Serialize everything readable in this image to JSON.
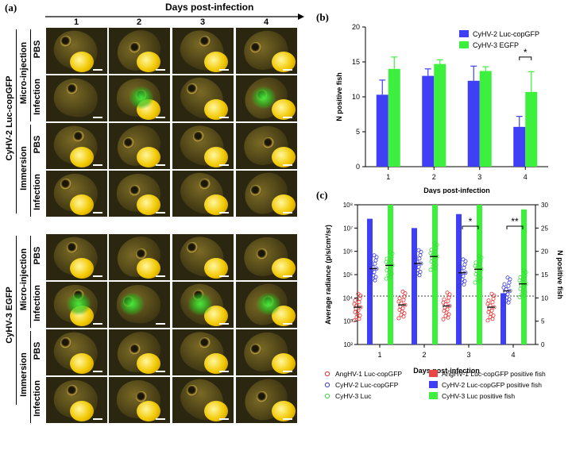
{
  "panel_a": {
    "letter": "(a)",
    "axis_title": "Days post-infection",
    "days": [
      "1",
      "2",
      "3",
      "4"
    ],
    "virus_groups": [
      "CyHV-2 Luc-copGFP",
      "CyHV-3 EGFP"
    ],
    "routes": [
      "Micro-injection",
      "Immersion"
    ],
    "conditions": [
      "PBS",
      "Infection"
    ],
    "cells": [
      {
        "glow": 0,
        "yolk": 1
      },
      {
        "glow": 0,
        "yolk": 1
      },
      {
        "glow": 0,
        "yolk": 1
      },
      {
        "glow": 0,
        "yolk": 1
      },
      {
        "glow": 0,
        "yolk": 0
      },
      {
        "glow": 1,
        "yolk": 1
      },
      {
        "glow": 0,
        "yolk": 1
      },
      {
        "glow": 1,
        "yolk": 1
      },
      {
        "glow": 0,
        "yolk": 1
      },
      {
        "glow": 0,
        "yolk": 1
      },
      {
        "glow": 0,
        "yolk": 1
      },
      {
        "glow": 0,
        "yolk": 1
      },
      {
        "glow": 0,
        "yolk": 1
      },
      {
        "glow": 0,
        "yolk": 1
      },
      {
        "glow": 0,
        "yolk": 1
      },
      {
        "glow": 0,
        "yolk": 1
      },
      {
        "glow": 0,
        "yolk": 1
      },
      {
        "glow": 0,
        "yolk": 1
      },
      {
        "glow": 0,
        "yolk": 1
      },
      {
        "glow": 0,
        "yolk": 1
      },
      {
        "glow": 1,
        "yolk": 1
      },
      {
        "glow": 1,
        "yolk": 0
      },
      {
        "glow": 1,
        "yolk": 1
      },
      {
        "glow": 1,
        "yolk": 1
      },
      {
        "glow": 0,
        "yolk": 1
      },
      {
        "glow": 0,
        "yolk": 1
      },
      {
        "glow": 0,
        "yolk": 1
      },
      {
        "glow": 0,
        "yolk": 1
      },
      {
        "glow": 0,
        "yolk": 1
      },
      {
        "glow": 0,
        "yolk": 1
      },
      {
        "glow": 0,
        "yolk": 1
      },
      {
        "glow": 0,
        "yolk": 1
      }
    ]
  },
  "chart_data": [
    {
      "panel": "(b)",
      "type": "bar",
      "categories": [
        "1",
        "2",
        "3",
        "4"
      ],
      "xlabel": "Days post-infection",
      "ylabel": "N positive fish",
      "ylim": [
        0,
        20
      ],
      "yticks": [
        "0",
        "5",
        "10",
        "15",
        "20"
      ],
      "series": [
        {
          "name": "CyHV-2 Luc-copGFP",
          "color": "#3f3ff5",
          "values": [
            10.3,
            13.0,
            12.3,
            5.7
          ],
          "errors": [
            2.1,
            1.0,
            2.1,
            1.5
          ]
        },
        {
          "name": "CyHV-3 EGFP",
          "color": "#3df03d",
          "values": [
            14.0,
            14.7,
            13.7,
            10.7
          ],
          "errors": [
            1.7,
            0.6,
            0.6,
            2.9
          ]
        }
      ],
      "annotations": [
        {
          "day": "4",
          "text": "*"
        }
      ],
      "legend": "top-right"
    },
    {
      "panel": "(c)",
      "type": "scatter",
      "categories": [
        "1",
        "2",
        "3",
        "4"
      ],
      "xlabel": "Days post-infection",
      "ylabel": "Average radiance (p/s/cm²/sr)",
      "y2label": "N positive fish",
      "yscale": "log",
      "ylim": [
        100,
        100000000
      ],
      "yticks": [
        "10²",
        "10³",
        "10⁴",
        "10⁵",
        "10⁶",
        "10⁷",
        "10⁸"
      ],
      "y2lim": [
        0,
        30
      ],
      "y2ticks": [
        "0",
        "5",
        "10",
        "15",
        "20",
        "25",
        "30"
      ],
      "threshold": 12000,
      "series": [
        {
          "name": "AngHV-1 Luc-copGFP",
          "kind": "points",
          "color": "#e83030",
          "means": [
            4000,
            5000,
            4500,
            4000
          ]
        },
        {
          "name": "CyHV-2 Luc-copGFP",
          "kind": "points",
          "color": "#3a3ad8",
          "means": [
            180000,
            300000,
            120000,
            20000
          ]
        },
        {
          "name": "CyHV-3 Luc",
          "kind": "points",
          "color": "#3cd83c",
          "means": [
            250000,
            600000,
            170000,
            40000
          ]
        },
        {
          "name": "AngHV-1 Luc-copGFP positive fish",
          "kind": "bar",
          "color": "#e84545",
          "values": [
            0,
            0,
            0,
            0
          ]
        },
        {
          "name": "CyHV-2 Luc-copGFP positive fish",
          "kind": "bar",
          "color": "#3f3ff5",
          "values": [
            27,
            25,
            28,
            11
          ]
        },
        {
          "name": "CyHV-3 Luc positive fish",
          "kind": "bar",
          "color": "#3df03d",
          "values": [
            30,
            30,
            30,
            29
          ]
        }
      ],
      "annotations": [
        {
          "day": "3",
          "text": "*"
        },
        {
          "day": "4",
          "text": "**"
        }
      ],
      "legend": "bottom"
    }
  ]
}
